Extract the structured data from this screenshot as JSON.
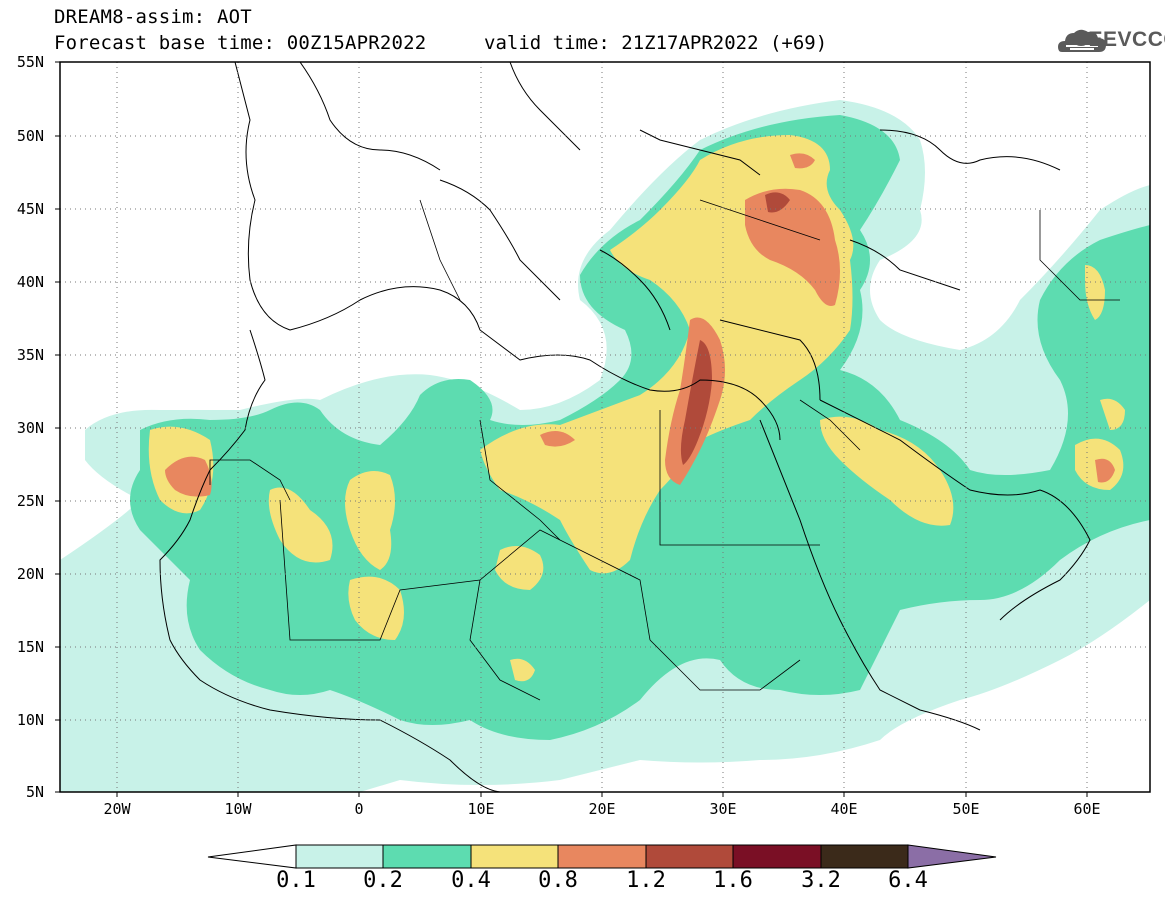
{
  "header": {
    "title": "DREAM8-assim: AOT",
    "base_time": "Forecast base time: 00Z15APR2022",
    "valid_time": "valid time: 21Z17APR2022 (+69)",
    "logo_text": "SEEVCCC",
    "logo_icon": "cloud-icon"
  },
  "map": {
    "lat_range": [
      5,
      55
    ],
    "lon_range": [
      -25,
      65
    ],
    "lat_labels": [
      "55N",
      "50N",
      "45N",
      "40N",
      "35N",
      "30N",
      "25N",
      "20N",
      "15N",
      "10N",
      "5N"
    ],
    "lon_labels": [
      "20W",
      "10W",
      "0",
      "10E",
      "20E",
      "30E",
      "40E",
      "50E",
      "60E"
    ],
    "grid": "dotted"
  },
  "colorbar": {
    "labels": [
      "0.1",
      "0.2",
      "0.4",
      "0.8",
      "1.2",
      "1.6",
      "3.2",
      "6.4"
    ],
    "colors": [
      "#ffffff",
      "#c8f2e8",
      "#5ddcb0",
      "#f5e27a",
      "#e8875f",
      "#b04a3a",
      "#7a0f25",
      "#3b2a1a",
      "#8b6ea6"
    ]
  }
}
